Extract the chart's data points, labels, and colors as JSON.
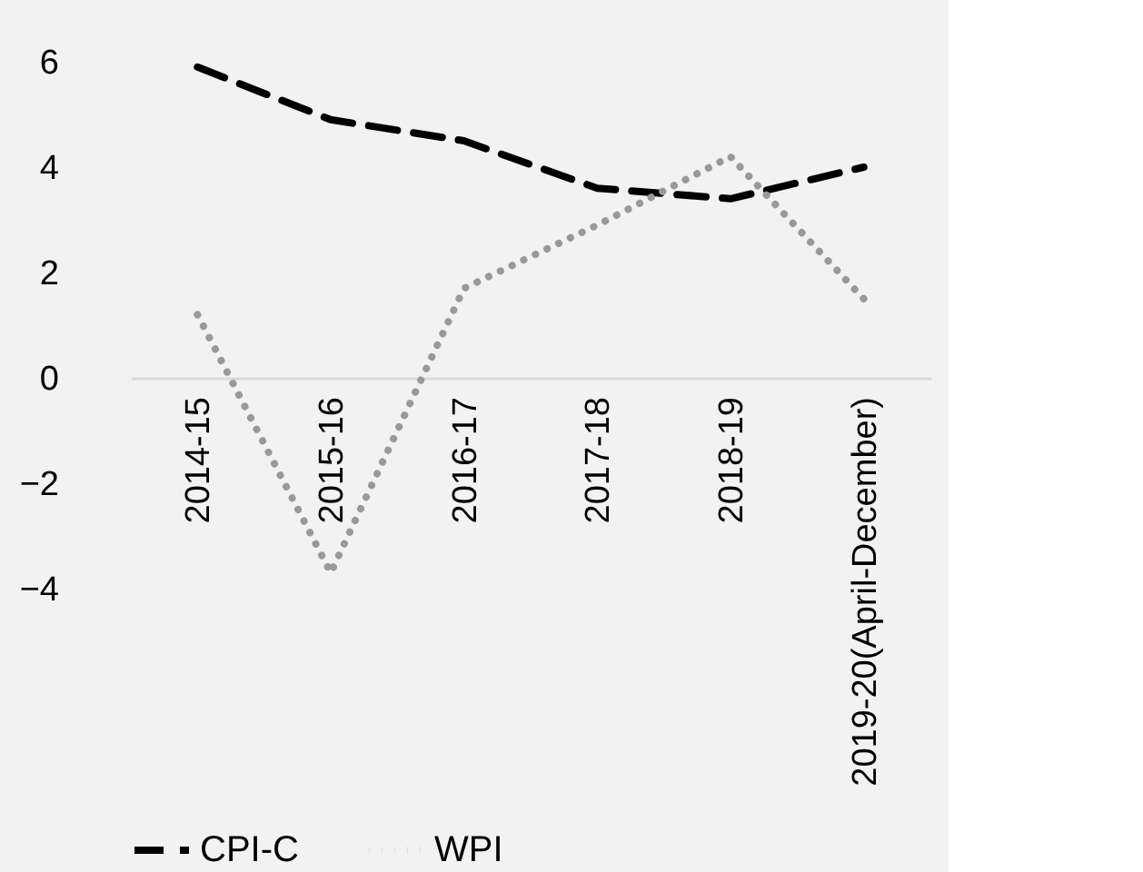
{
  "chart_data": {
    "type": "line",
    "categories": [
      "2014-15",
      "2015-16",
      "2016-17",
      "2017-18",
      "2018-19",
      "2019-20(April-December)"
    ],
    "series": [
      {
        "name": "CPI-C",
        "color": "#000000",
        "line_style": "dashed",
        "values": [
          5.9,
          4.9,
          4.5,
          3.6,
          3.4,
          4.0
        ]
      },
      {
        "name": "WPI",
        "color": "#999999",
        "line_style": "dotted",
        "values": [
          1.2,
          -3.7,
          1.7,
          2.9,
          4.2,
          1.5
        ]
      }
    ],
    "ylim": [
      -4,
      6
    ],
    "yticks": [
      -4,
      -2,
      0,
      2,
      4,
      6
    ],
    "grid": false,
    "legend": "bottom",
    "marker": "none"
  }
}
